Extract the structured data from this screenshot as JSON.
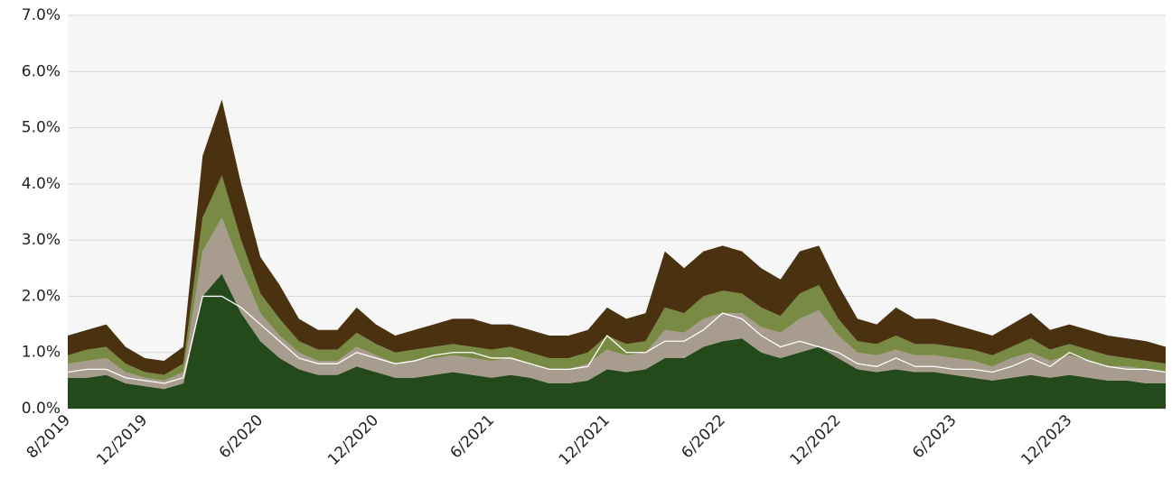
{
  "chart_data": {
    "type": "stacked-area",
    "categories": [
      "8/2019",
      null,
      null,
      null,
      "12/2019",
      null,
      null,
      null,
      null,
      null,
      "6/2020",
      null,
      null,
      null,
      null,
      null,
      "12/2020",
      null,
      null,
      null,
      null,
      null,
      "6/2021",
      null,
      null,
      null,
      null,
      null,
      "12/2021",
      null,
      null,
      null,
      null,
      null,
      "6/2022",
      null,
      null,
      null,
      null,
      null,
      "12/2022",
      null,
      null,
      null,
      null,
      null,
      "6/2023",
      null,
      null,
      null,
      null,
      null,
      "12/2023",
      null,
      null,
      null,
      null,
      null
    ],
    "series": [
      {
        "color": "#244a1c",
        "values": [
          0.55,
          0.55,
          0.6,
          0.45,
          0.4,
          0.35,
          0.45,
          2.0,
          2.4,
          1.7,
          1.2,
          0.9,
          0.7,
          0.6,
          0.6,
          0.75,
          0.65,
          0.55,
          0.55,
          0.6,
          0.65,
          0.6,
          0.55,
          0.6,
          0.55,
          0.45,
          0.45,
          0.5,
          0.7,
          0.65,
          0.7,
          0.9,
          0.9,
          1.1,
          1.2,
          1.25,
          1.0,
          0.9,
          1.0,
          1.1,
          0.9,
          0.7,
          0.65,
          0.7,
          0.65,
          0.65,
          0.6,
          0.55,
          0.5,
          0.55,
          0.6,
          0.55,
          0.6,
          0.55,
          0.5,
          0.5,
          0.45,
          0.45
        ]
      },
      {
        "color": "#a89c8e",
        "values": [
          0.25,
          0.3,
          0.3,
          0.2,
          0.15,
          0.15,
          0.2,
          0.8,
          1.0,
          0.8,
          0.5,
          0.4,
          0.3,
          0.25,
          0.25,
          0.35,
          0.3,
          0.25,
          0.3,
          0.3,
          0.3,
          0.3,
          0.3,
          0.3,
          0.25,
          0.25,
          0.25,
          0.3,
          0.35,
          0.3,
          0.3,
          0.5,
          0.45,
          0.5,
          0.5,
          0.45,
          0.45,
          0.45,
          0.6,
          0.65,
          0.4,
          0.3,
          0.3,
          0.35,
          0.3,
          0.3,
          0.3,
          0.3,
          0.25,
          0.35,
          0.4,
          0.3,
          0.35,
          0.3,
          0.25,
          0.25,
          0.25,
          0.2
        ]
      },
      {
        "color": "#788a44",
        "values": [
          0.15,
          0.2,
          0.2,
          0.15,
          0.1,
          0.1,
          0.15,
          0.6,
          0.75,
          0.5,
          0.35,
          0.3,
          0.2,
          0.2,
          0.2,
          0.25,
          0.2,
          0.2,
          0.2,
          0.2,
          0.2,
          0.2,
          0.2,
          0.2,
          0.2,
          0.2,
          0.2,
          0.2,
          0.25,
          0.2,
          0.2,
          0.4,
          0.35,
          0.4,
          0.4,
          0.35,
          0.35,
          0.3,
          0.45,
          0.45,
          0.3,
          0.2,
          0.2,
          0.25,
          0.2,
          0.2,
          0.2,
          0.2,
          0.2,
          0.2,
          0.25,
          0.2,
          0.2,
          0.2,
          0.2,
          0.15,
          0.15,
          0.15
        ]
      },
      {
        "color": "#4a3210",
        "values": [
          0.35,
          0.35,
          0.4,
          0.3,
          0.25,
          0.25,
          0.3,
          1.1,
          1.35,
          1.0,
          0.65,
          0.6,
          0.4,
          0.35,
          0.35,
          0.45,
          0.35,
          0.3,
          0.35,
          0.4,
          0.45,
          0.5,
          0.45,
          0.4,
          0.4,
          0.4,
          0.4,
          0.4,
          0.5,
          0.45,
          0.5,
          1.0,
          0.8,
          0.8,
          0.8,
          0.75,
          0.7,
          0.65,
          0.75,
          0.7,
          0.6,
          0.4,
          0.35,
          0.5,
          0.45,
          0.45,
          0.4,
          0.35,
          0.35,
          0.4,
          0.45,
          0.35,
          0.35,
          0.35,
          0.35,
          0.35,
          0.35,
          0.3
        ]
      }
    ],
    "lines": [
      {
        "color": "#ffffff",
        "values": [
          0.65,
          0.7,
          0.7,
          0.55,
          0.5,
          0.45,
          0.55,
          2.0,
          2.0,
          1.8,
          1.5,
          1.2,
          0.9,
          0.8,
          0.8,
          1.0,
          0.9,
          0.8,
          0.85,
          0.95,
          1.0,
          1.0,
          0.9,
          0.9,
          0.8,
          0.7,
          0.7,
          0.75,
          1.3,
          1.0,
          1.0,
          1.2,
          1.2,
          1.4,
          1.7,
          1.6,
          1.3,
          1.1,
          1.2,
          1.1,
          1.0,
          0.8,
          0.75,
          0.9,
          0.75,
          0.75,
          0.7,
          0.7,
          0.65,
          0.75,
          0.9,
          0.75,
          1.0,
          0.85,
          0.75,
          0.7,
          0.7,
          0.65
        ]
      }
    ],
    "ylim": [
      0,
      7
    ],
    "yticks": [
      {
        "value": 0,
        "label": "0.0%"
      },
      {
        "value": 1,
        "label": "1.0%"
      },
      {
        "value": 2,
        "label": "2.0%"
      },
      {
        "value": 3,
        "label": "3.0%"
      },
      {
        "value": 4,
        "label": "4.0%"
      },
      {
        "value": 5,
        "label": "5.0%"
      },
      {
        "value": 6,
        "label": "6.0%"
      },
      {
        "value": 7,
        "label": "7.0%"
      }
    ],
    "grid": true
  }
}
